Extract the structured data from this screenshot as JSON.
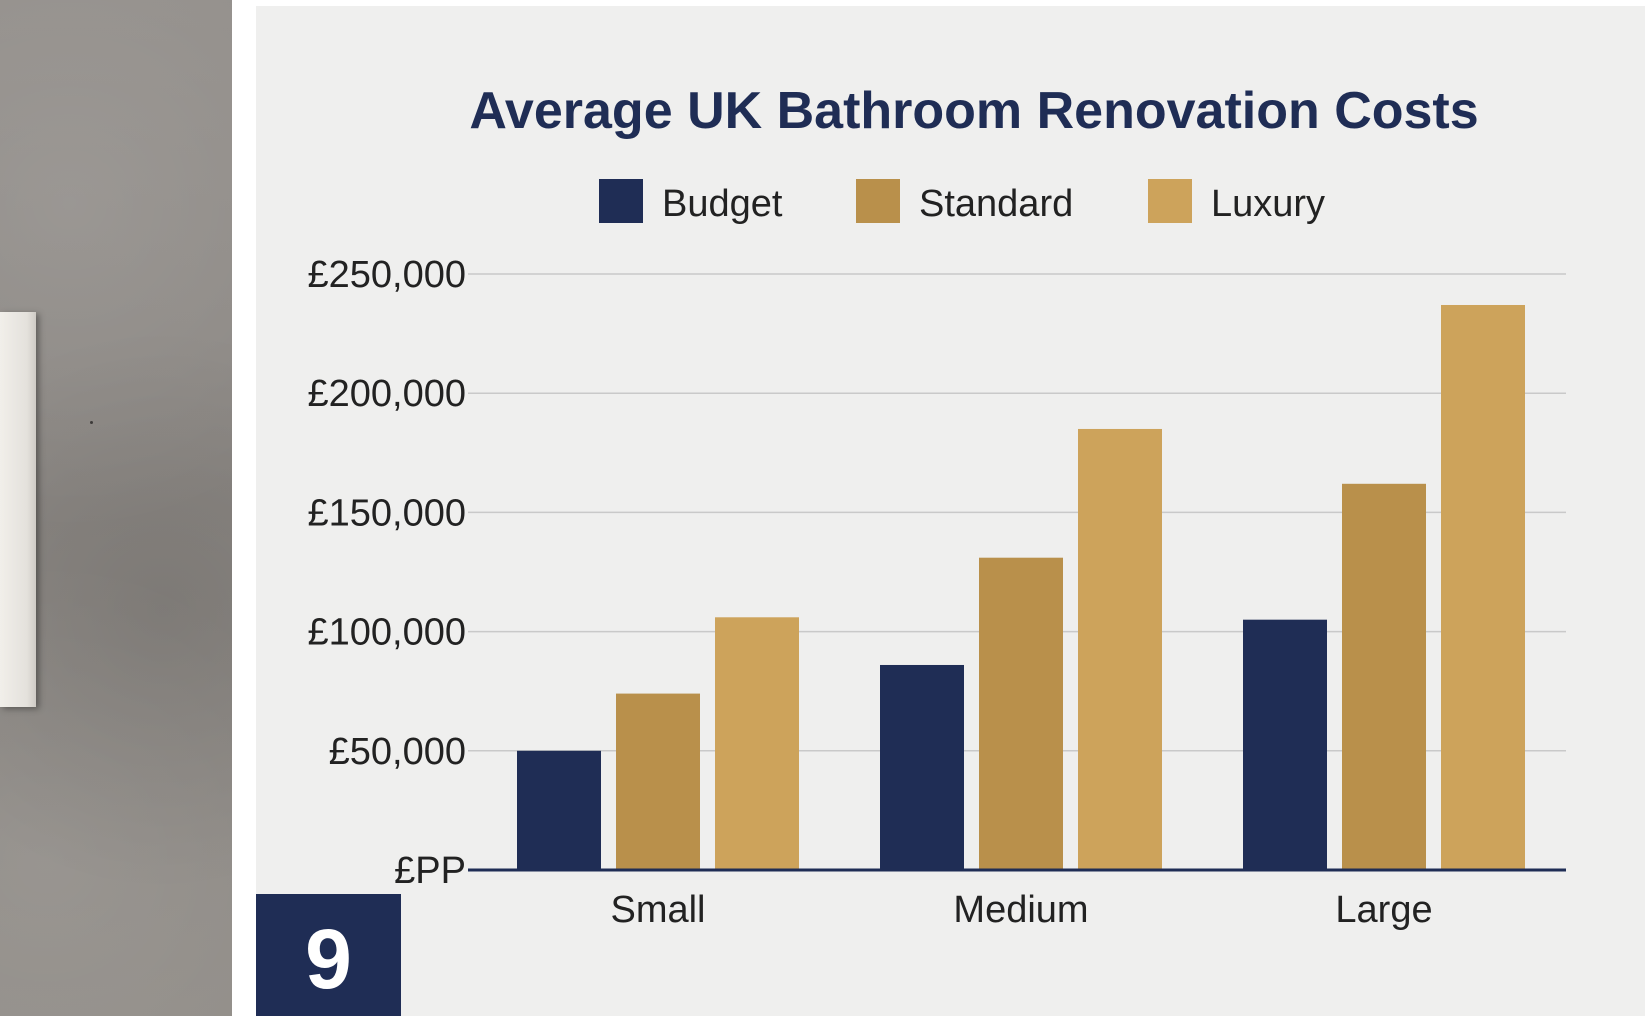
{
  "page_badge": "9",
  "chart_data": {
    "type": "bar",
    "title": "Average UK Bathroom Renovation Costs",
    "categories": [
      "Small",
      "Medium",
      "Large"
    ],
    "series": [
      {
        "name": "Budget",
        "color": "#1f2d55",
        "values": [
          50000,
          86000,
          105000
        ]
      },
      {
        "name": "Standard",
        "color": "#b9904b",
        "values": [
          74000,
          131000,
          162000
        ]
      },
      {
        "name": "Luxury",
        "color": "#cda35b",
        "values": [
          106000,
          185000,
          237000
        ]
      }
    ],
    "ylim": [
      0,
      250000
    ],
    "yticks": [
      0,
      50000,
      100000,
      150000,
      200000,
      250000
    ],
    "ytick_labels": [
      "£PP",
      "£50,000",
      "£100,000",
      "£150,000",
      "£200,000",
      "£250,000"
    ],
    "grid": true,
    "legend_position": "top-center"
  }
}
